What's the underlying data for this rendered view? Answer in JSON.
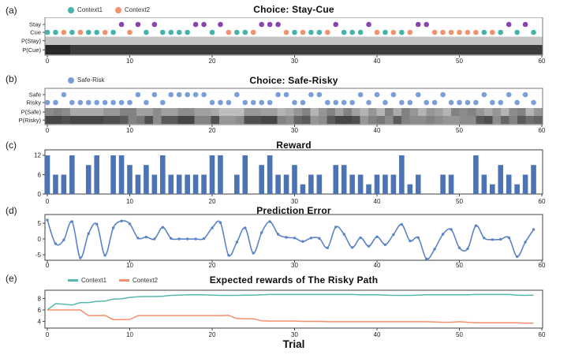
{
  "figure": {
    "xlabel": "Trial",
    "xticks": [
      0,
      10,
      20,
      30,
      40,
      50,
      60
    ]
  },
  "chart_data": [
    {
      "id": "a",
      "panel_label": "(a)",
      "type": "scatter",
      "title": "Choice: Stay-Cue",
      "legend": [
        {
          "label": "Context1",
          "color": "#45b3a9"
        },
        {
          "label": "Context2",
          "color": "#f0926e"
        }
      ],
      "row_labels": [
        "Stay",
        "Cue",
        "P(Stay)",
        "P(Cue)"
      ],
      "xlim": [
        0,
        60
      ],
      "stay_color": "#8a42ae",
      "stay_trials": [
        9,
        11,
        13,
        18,
        19,
        21,
        26,
        27,
        28,
        35,
        39,
        45,
        46,
        56,
        58
      ],
      "cue_context1_trials": [
        0,
        1,
        3,
        5,
        6,
        8,
        12,
        14,
        15,
        16,
        17,
        20,
        23,
        24,
        30,
        32,
        33,
        36,
        37,
        38,
        41,
        43,
        53,
        55,
        57,
        59
      ],
      "cue_context2_trials": [
        2,
        4,
        7,
        10,
        22,
        25,
        29,
        31,
        34,
        40,
        42,
        44,
        47,
        48,
        49,
        50,
        51,
        52,
        54
      ],
      "p_stay_uniform": 0.22,
      "p_cue_values": [
        1,
        1,
        1,
        0.9,
        0.9,
        0.9,
        0.9,
        0.9,
        0.9,
        0.9,
        0.9,
        0.9,
        0.9,
        0.9,
        0.9,
        0.9,
        0.9,
        0.9,
        0.9,
        0.9,
        0.9,
        0.9,
        0.9,
        0.9,
        0.9,
        0.9,
        0.9,
        0.9,
        0.9,
        0.9,
        0.9,
        0.9,
        0.9,
        0.9,
        0.9,
        0.9,
        0.9,
        0.9,
        0.9,
        0.9,
        0.9,
        0.9,
        0.9,
        0.9,
        0.9,
        0.9,
        0.9,
        0.9,
        0.9,
        0.9,
        0.9,
        0.9,
        0.9,
        0.9,
        0.9,
        0.9,
        0.9,
        0.9,
        0.9,
        0.9
      ]
    },
    {
      "id": "b",
      "panel_label": "(b)",
      "type": "scatter",
      "title": "Choice: Safe-Risky",
      "legend": [
        {
          "label": "Safe-Risk",
          "color": "#7a9ed8"
        }
      ],
      "row_labels": [
        "Safe",
        "Risky",
        "P(Safe)",
        "P(Risky)"
      ],
      "xlim": [
        0,
        60
      ],
      "dot_color": "#7a9ed8",
      "safe_trials": [
        2,
        11,
        13,
        15,
        16,
        17,
        18,
        19,
        23,
        28,
        29,
        32,
        33,
        38,
        40,
        42,
        45,
        48,
        53,
        56,
        58
      ],
      "risky_trials": [
        0,
        1,
        3,
        4,
        5,
        6,
        7,
        8,
        9,
        10,
        12,
        14,
        20,
        21,
        22,
        24,
        25,
        26,
        27,
        30,
        31,
        34,
        35,
        36,
        37,
        39,
        41,
        43,
        44,
        46,
        47,
        49,
        50,
        51,
        52,
        54,
        55,
        57,
        59
      ],
      "p_safe_values": [
        0.5,
        0.55,
        0.5,
        0.35,
        0.35,
        0.35,
        0.35,
        0.45,
        0.45,
        0.55,
        0.55,
        0.4,
        0.4,
        0.5,
        0.4,
        0.4,
        0.5,
        0.5,
        0.4,
        0.4,
        0.35,
        0.25,
        0.25,
        0.25,
        0.45,
        0.45,
        0.4,
        0.4,
        0.3,
        0.35,
        0.45,
        0.55,
        0.3,
        0.45,
        0.55,
        0.4,
        0.55,
        0.4,
        0.3,
        0.45,
        0.3,
        0.55,
        0.35,
        0.55,
        0.45,
        0.3,
        0.45,
        0.4,
        0.3,
        0.55,
        0.5,
        0.55,
        0.45,
        0.35,
        0.45,
        0.3,
        0.5,
        0.55,
        0.3,
        0.45
      ],
      "p_risky_values": [
        0.85,
        0.85,
        0.8,
        0.85,
        0.85,
        0.85,
        0.85,
        0.8,
        0.8,
        0.75,
        0.55,
        0.6,
        0.8,
        0.5,
        0.75,
        0.75,
        0.85,
        0.85,
        0.55,
        0.55,
        0.8,
        0.45,
        0.45,
        0.5,
        0.8,
        0.8,
        0.85,
        0.85,
        0.55,
        0.5,
        0.7,
        0.75,
        0.45,
        0.5,
        0.75,
        0.85,
        0.85,
        0.8,
        0.45,
        0.55,
        0.6,
        0.5,
        0.75,
        0.55,
        0.5,
        0.5,
        0.55,
        0.5,
        0.45,
        0.45,
        0.5,
        0.5,
        0.75,
        0.8,
        0.5,
        0.7,
        0.55,
        0.75,
        0.65,
        0.7
      ]
    },
    {
      "id": "c",
      "panel_label": "(c)",
      "type": "bar",
      "title": "Reward",
      "bar_color": "#4c74b4",
      "yticks": [
        0,
        6,
        12
      ],
      "ylim": [
        0,
        13.7
      ],
      "values": [
        12,
        6,
        6,
        12,
        0,
        9,
        12,
        0,
        12,
        12,
        9,
        6,
        9,
        6,
        12,
        6,
        6,
        6,
        6,
        6,
        12,
        12,
        0,
        6,
        12,
        0,
        9,
        12,
        6,
        6,
        9,
        3,
        6,
        6,
        0,
        9,
        9,
        6,
        6,
        3,
        6,
        6,
        6,
        12,
        3,
        6,
        0,
        0,
        6,
        6,
        0,
        0,
        12,
        6,
        3,
        9,
        6,
        3,
        6,
        9
      ]
    },
    {
      "id": "d",
      "panel_label": "(d)",
      "type": "line",
      "title": "Prediction Error",
      "line_color": "#5b84c8",
      "yticks": [
        -5,
        0,
        5
      ],
      "ylim": [
        -7.5,
        7.5
      ],
      "values": [
        6,
        -1.5,
        -0.3,
        5.5,
        -6,
        1.7,
        4.7,
        -5.2,
        3.5,
        5.7,
        4.8,
        0.3,
        0.6,
        0,
        3.7,
        0.2,
        0,
        0,
        0,
        0.1,
        3.5,
        5.2,
        -5.2,
        -1,
        3.5,
        -4.5,
        2,
        5.5,
        1.5,
        0.5,
        0.3,
        -0.8,
        0.3,
        0.2,
        -2.8,
        3.8,
        1.5,
        -2.7,
        0.4,
        -2.3,
        0.7,
        -1.8,
        1.4,
        4.6,
        -0.6,
        0.4,
        -6.3,
        -3.2,
        1.5,
        3,
        -2.8,
        -3.1,
        4.2,
        0.3,
        -0.2,
        -0.1,
        0.4,
        -5.6,
        -1,
        3
      ]
    },
    {
      "id": "e",
      "panel_label": "(e)",
      "type": "line",
      "title": "Expected rewards of The Risky Path",
      "yticks": [
        4,
        6,
        8
      ],
      "ylim": [
        3.2,
        9.4
      ],
      "series": [
        {
          "name": "Context1",
          "color": "#56b8ae",
          "values": [
            6,
            7.1,
            7,
            6.85,
            7.3,
            7.3,
            7.5,
            7.55,
            7.9,
            7.95,
            8.2,
            8.3,
            8.35,
            8.35,
            8.4,
            8.55,
            8.6,
            8.65,
            8.65,
            8.65,
            8.6,
            8.55,
            8.55,
            8.55,
            8.6,
            8.6,
            8.65,
            8.7,
            8.7,
            8.7,
            8.7,
            8.7,
            8.7,
            8.7,
            8.7,
            8.7,
            8.7,
            8.7,
            8.65,
            8.65,
            8.65,
            8.6,
            8.55,
            8.55,
            8.55,
            8.6,
            8.65,
            8.65,
            8.65,
            8.65,
            8.65,
            8.65,
            8.7,
            8.7,
            8.7,
            8.7,
            8.7,
            8.6,
            8.55,
            8.6
          ]
        },
        {
          "name": "Context2",
          "color": "#f58f6d",
          "values": [
            6,
            6,
            6,
            6,
            6,
            5,
            5,
            5.05,
            4.3,
            4.3,
            4.35,
            5,
            5,
            5,
            5,
            5,
            5,
            5,
            5,
            5,
            5,
            5,
            5.05,
            4.5,
            4.45,
            4.45,
            4.1,
            4.05,
            4.05,
            4.05,
            4.05,
            4,
            4,
            4,
            3.95,
            3.95,
            3.95,
            3.95,
            3.95,
            3.95,
            3.95,
            3.95,
            3.95,
            3.95,
            3.95,
            3.95,
            3.95,
            3.9,
            3.85,
            3.85,
            3.95,
            3.85,
            3.75,
            3.75,
            3.75,
            3.75,
            3.75,
            3.75,
            3.7,
            3.7
          ]
        }
      ]
    }
  ]
}
